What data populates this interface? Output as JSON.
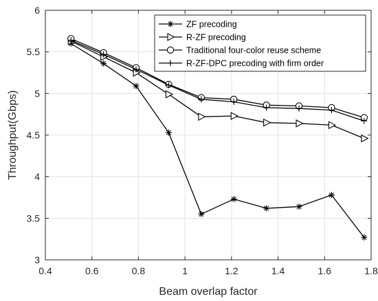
{
  "chart_data": {
    "type": "line",
    "xlabel": "Beam overlap factor",
    "ylabel": "Throughput(Gbps)",
    "xlim": [
      0.4,
      1.8
    ],
    "ylim": [
      3,
      6
    ],
    "xticks": [
      0.4,
      0.6,
      0.8,
      1.0,
      1.2,
      1.4,
      1.6,
      1.8
    ],
    "xtick_labels": [
      "0.4",
      "0.6",
      "0.8",
      "1",
      "1.2",
      "1.4",
      "1.6",
      "1.8"
    ],
    "yticks": [
      3,
      3.5,
      4,
      4.5,
      5,
      5.5,
      6
    ],
    "ytick_labels": [
      "3",
      "3.5",
      "4",
      "4.5",
      "5",
      "5.5",
      "6"
    ],
    "grid": true,
    "legend_position": "top-right",
    "x": [
      0.51,
      0.65,
      0.79,
      0.93,
      1.07,
      1.21,
      1.35,
      1.49,
      1.63,
      1.77
    ],
    "series": [
      {
        "name": "ZF precoding",
        "marker": "asterisk",
        "values": [
          5.6,
          5.36,
          5.09,
          4.53,
          3.55,
          3.73,
          3.62,
          3.64,
          3.78,
          3.27
        ]
      },
      {
        "name": "R-ZF precoding",
        "marker": "triangle-right",
        "values": [
          5.63,
          5.44,
          5.25,
          4.99,
          4.72,
          4.73,
          4.65,
          4.64,
          4.62,
          4.46
        ]
      },
      {
        "name": "Traditional four-color reuse scheme",
        "marker": "circle",
        "values": [
          5.66,
          5.49,
          5.31,
          5.11,
          4.95,
          4.93,
          4.86,
          4.85,
          4.83,
          4.71
        ]
      },
      {
        "name": "R-ZF-DPC precoding with firm order",
        "marker": "plus",
        "values": [
          5.64,
          5.47,
          5.29,
          5.1,
          4.93,
          4.9,
          4.83,
          4.82,
          4.8,
          4.67
        ]
      }
    ]
  }
}
